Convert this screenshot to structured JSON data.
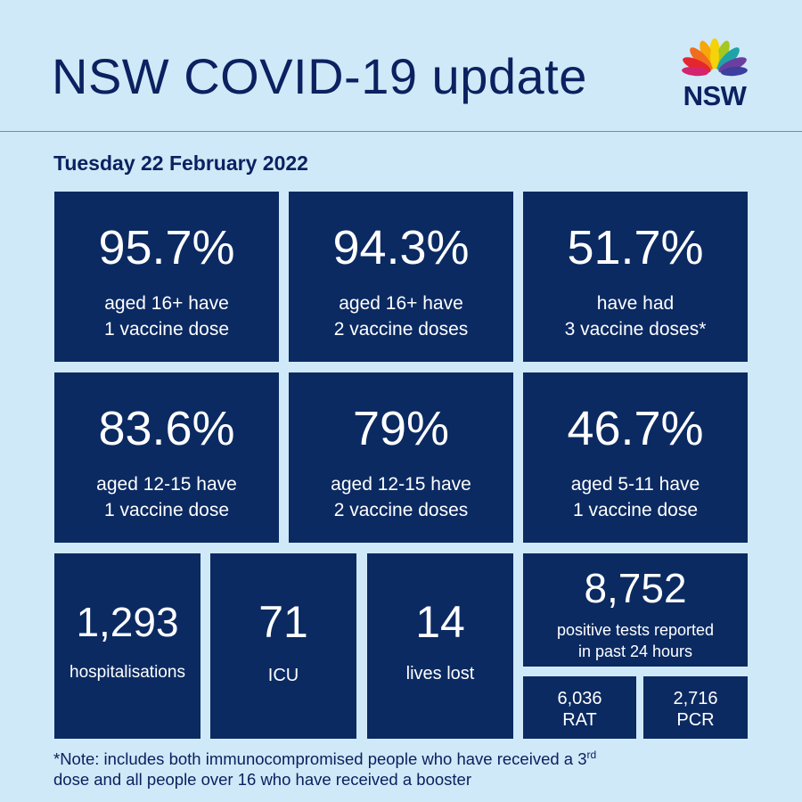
{
  "header": {
    "title": "NSW COVID-19 update",
    "logo_text": "NSW"
  },
  "date": "Tuesday 22 February 2022",
  "vaccination": [
    {
      "value": "95.7%",
      "line1": "aged 16+ have",
      "line2": "1 vaccine dose"
    },
    {
      "value": "94.3%",
      "line1": "aged 16+ have",
      "line2": "2 vaccine doses"
    },
    {
      "value": "51.7%",
      "line1": "have had",
      "line2": "3 vaccine doses*"
    },
    {
      "value": "83.6%",
      "line1": "aged 12-15 have",
      "line2": "1 vaccine dose"
    },
    {
      "value": "79%",
      "line1": "aged 12-15 have",
      "line2": "2 vaccine doses"
    },
    {
      "value": "46.7%",
      "line1": "aged 5-11 have",
      "line2": "1 vaccine dose"
    }
  ],
  "stats": {
    "hospitalisations": {
      "value": "1,293",
      "label": "hospitalisations"
    },
    "icu": {
      "value": "71",
      "label": "ICU"
    },
    "deaths": {
      "value": "14",
      "label": "lives lost"
    },
    "positive": {
      "value": "8,752",
      "line1": "positive tests reported",
      "line2": "in past 24 hours"
    },
    "rat": {
      "value": "6,036",
      "label": "RAT"
    },
    "pcr": {
      "value": "2,716",
      "label": "PCR"
    }
  },
  "note": {
    "part1": "*Note: includes both immunocompromised  people who have received a 3",
    "sup": "rd",
    "part2": "dose and all people over 16 who have received a booster"
  }
}
